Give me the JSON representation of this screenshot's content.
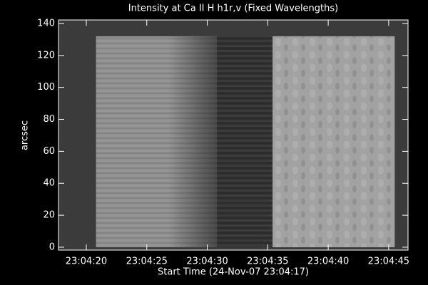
{
  "chart_data": {
    "type": "image",
    "title": "Intensity at Ca II H h1r,v (Fixed Wavelengths)",
    "xlabel": "Start Time (24-Nov-07 23:04:17)",
    "ylabel": "arcsec",
    "xlim": [
      0.7,
      29.6
    ],
    "ylim": [
      -1.8,
      142.2
    ],
    "xticks": [
      {
        "value": 3,
        "label": "23:04:20"
      },
      {
        "value": 8,
        "label": "23:04:25"
      },
      {
        "value": 13,
        "label": "23:04:30"
      },
      {
        "value": 18,
        "label": "23:04:35"
      },
      {
        "value": 23,
        "label": "23:04:40"
      },
      {
        "value": 28,
        "label": "23:04:45"
      }
    ],
    "yticks": [
      0,
      20,
      40,
      60,
      80,
      100,
      120,
      140
    ],
    "background": "#3b3b3b",
    "blocks": [
      {
        "x": [
          3.8,
          13.8
        ],
        "y": [
          0,
          132
        ],
        "color": "#8e8e8e"
      },
      {
        "x": [
          13.8,
          18.4
        ],
        "y": [
          0,
          132
        ],
        "color": "#2f2f2f"
      },
      {
        "x": [
          18.4,
          28.5
        ],
        "y": [
          0,
          132
        ],
        "color": "#a2a2a2"
      }
    ]
  }
}
